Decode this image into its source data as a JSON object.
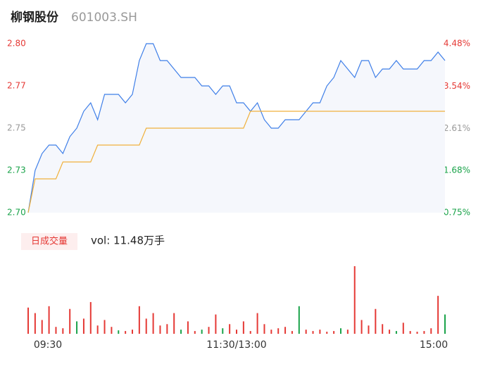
{
  "header": {
    "name": "柳钢股份",
    "code": "601003.SH"
  },
  "chart_data": [
    {
      "type": "line",
      "x": [
        0,
        4,
        8,
        12,
        16,
        20,
        24,
        28,
        32,
        36,
        40,
        44,
        48,
        52,
        56,
        60,
        64,
        68,
        72,
        76,
        80,
        84,
        88,
        92,
        96,
        100,
        104,
        108,
        112,
        116,
        120,
        124,
        128,
        132,
        136,
        140,
        144,
        148,
        152,
        156,
        160,
        164,
        168,
        172,
        176,
        180,
        184,
        188,
        192,
        196,
        200,
        204,
        208,
        212,
        216,
        220,
        224,
        228,
        232,
        236,
        240
      ],
      "xlim": [
        0,
        240
      ],
      "xticks": [
        {
          "value": 0,
          "label": "09:30"
        },
        {
          "value": 120,
          "label": "11:30/13:00"
        },
        {
          "value": 240,
          "label": "15:00"
        }
      ],
      "ylim": [
        2.7,
        2.8
      ],
      "yticks": [
        {
          "value": 2.8,
          "label": "2.80"
        },
        {
          "value": 2.775,
          "label": "2.77"
        },
        {
          "value": 2.75,
          "label": "2.75"
        },
        {
          "value": 2.725,
          "label": "2.73"
        },
        {
          "value": 2.7,
          "label": "2.70"
        }
      ],
      "y2lim": [
        0.75,
        4.48
      ],
      "y2ticks": [
        {
          "value": 4.48,
          "label": "4.48%"
        },
        {
          "value": 3.54,
          "label": "3.54%"
        },
        {
          "value": 2.61,
          "label": "2.61%"
        },
        {
          "value": 1.68,
          "label": "1.68%"
        },
        {
          "value": 0.75,
          "label": "0.75%"
        }
      ],
      "series": [
        {
          "name": "price",
          "color": "#3f7fe8",
          "values": [
            2.7,
            2.725,
            2.735,
            2.74,
            2.74,
            2.735,
            2.745,
            2.75,
            2.76,
            2.765,
            2.755,
            2.77,
            2.77,
            2.77,
            2.765,
            2.77,
            2.79,
            2.8,
            2.8,
            2.79,
            2.79,
            2.785,
            2.78,
            2.78,
            2.78,
            2.775,
            2.775,
            2.77,
            2.775,
            2.775,
            2.765,
            2.765,
            2.76,
            2.765,
            2.755,
            2.75,
            2.75,
            2.755,
            2.755,
            2.755,
            2.76,
            2.765,
            2.765,
            2.775,
            2.78,
            2.79,
            2.785,
            2.78,
            2.79,
            2.79,
            2.78,
            2.785,
            2.785,
            2.79,
            2.785,
            2.785,
            2.785,
            2.79,
            2.79,
            2.795,
            2.79
          ]
        },
        {
          "name": "average",
          "color": "#f0b13c",
          "values": [
            2.7,
            2.72,
            2.72,
            2.72,
            2.72,
            2.73,
            2.73,
            2.73,
            2.73,
            2.73,
            2.74,
            2.74,
            2.74,
            2.74,
            2.74,
            2.74,
            2.74,
            2.75,
            2.75,
            2.75,
            2.75,
            2.75,
            2.75,
            2.75,
            2.75,
            2.75,
            2.75,
            2.75,
            2.75,
            2.75,
            2.75,
            2.75,
            2.76,
            2.76,
            2.76,
            2.76,
            2.76,
            2.76,
            2.76,
            2.76,
            2.76,
            2.76,
            2.76,
            2.76,
            2.76,
            2.76,
            2.76,
            2.76,
            2.76,
            2.76,
            2.76,
            2.76,
            2.76,
            2.76,
            2.76,
            2.76,
            2.76,
            2.76,
            2.76,
            2.76,
            2.76
          ]
        }
      ]
    },
    {
      "type": "bar",
      "button": "日成交量",
      "label": "vol: 11.48万手",
      "x": [
        0,
        4,
        8,
        12,
        16,
        20,
        24,
        28,
        32,
        36,
        40,
        44,
        48,
        52,
        56,
        60,
        64,
        68,
        72,
        76,
        80,
        84,
        88,
        92,
        96,
        100,
        104,
        108,
        112,
        116,
        120,
        124,
        128,
        132,
        136,
        140,
        144,
        148,
        152,
        156,
        160,
        164,
        168,
        172,
        176,
        180,
        184,
        188,
        192,
        196,
        200,
        204,
        208,
        212,
        216,
        220,
        224,
        228,
        232,
        236,
        240
      ],
      "values": [
        38,
        30,
        20,
        40,
        10,
        8,
        36,
        18,
        22,
        46,
        12,
        20,
        10,
        5,
        4,
        6,
        40,
        22,
        30,
        12,
        14,
        30,
        6,
        18,
        4,
        6,
        10,
        28,
        8,
        14,
        6,
        18,
        4,
        30,
        14,
        6,
        8,
        10,
        4,
        40,
        6,
        4,
        6,
        3,
        4,
        8,
        6,
        98,
        20,
        12,
        36,
        14,
        6,
        4,
        16,
        4,
        3,
        4,
        8,
        55,
        28
      ],
      "colors": [
        "#e53935",
        "#e53935",
        "#e53935",
        "#e53935",
        "#e53935",
        "#e53935",
        "#e53935",
        "#1aa34a",
        "#e53935",
        "#e53935",
        "#e53935",
        "#e53935",
        "#e53935",
        "#1aa34a",
        "#e53935",
        "#e53935",
        "#e53935",
        "#e53935",
        "#e53935",
        "#e53935",
        "#e53935",
        "#e53935",
        "#1aa34a",
        "#e53935",
        "#e53935",
        "#1aa34a",
        "#e53935",
        "#e53935",
        "#1aa34a",
        "#e53935",
        "#e53935",
        "#e53935",
        "#e53935",
        "#e53935",
        "#e53935",
        "#e53935",
        "#e53935",
        "#e53935",
        "#e53935",
        "#1aa34a",
        "#e53935",
        "#e53935",
        "#e53935",
        "#e53935",
        "#e53935",
        "#1aa34a",
        "#e53935",
        "#e53935",
        "#e53935",
        "#e53935",
        "#e53935",
        "#e53935",
        "#e53935",
        "#1aa34a",
        "#e53935",
        "#e53935",
        "#e53935",
        "#e53935",
        "#e53935",
        "#e53935",
        "#1aa34a"
      ]
    }
  ]
}
